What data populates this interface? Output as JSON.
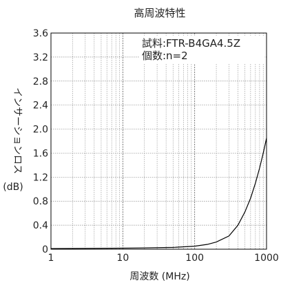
{
  "chart_data": {
    "type": "line",
    "title": "高周波特性",
    "xlabel": "周波数 (MHz)",
    "ylabel": "インサーションロス",
    "ylabel_unit": "(dB)",
    "x_scale": "log",
    "xlim": [
      1,
      1000
    ],
    "ylim": [
      0,
      3.6
    ],
    "x_ticks": [
      1,
      10,
      100,
      1000
    ],
    "x_tick_labels": [
      "1",
      "10",
      "100",
      "1000"
    ],
    "y_ticks": [
      0,
      0.4,
      0.8,
      1.2,
      1.6,
      2.0,
      2.4,
      2.8,
      3.2,
      3.6
    ],
    "y_tick_labels": [
      "0",
      "0.4",
      "0.8",
      "1.2",
      "1.6",
      "2.0",
      "2.4",
      "2.8",
      "3.2",
      "3.6"
    ],
    "grid": true,
    "annotations": [
      "試料:FTR-B4GA4.5Z",
      "個数:n=2"
    ],
    "series": [
      {
        "x": [
          1,
          2,
          5,
          10,
          20,
          50,
          100,
          150,
          200,
          300,
          400,
          500,
          600,
          700,
          800,
          900,
          1000
        ],
        "y": [
          0.01,
          0.012,
          0.015,
          0.018,
          0.022,
          0.03,
          0.05,
          0.08,
          0.12,
          0.22,
          0.4,
          0.62,
          0.85,
          1.1,
          1.35,
          1.6,
          1.85
        ]
      }
    ],
    "colors": {
      "line": "#000000",
      "grid": "#888888",
      "axis": "#000000"
    }
  }
}
